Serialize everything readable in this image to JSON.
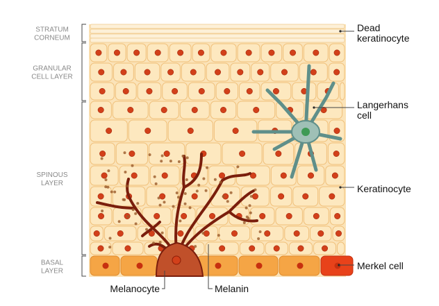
{
  "layers": [
    {
      "lines": [
        "STRATUM",
        "CORNEUM"
      ]
    },
    {
      "lines": [
        "GRANULAR",
        "CELL LAYER"
      ]
    },
    {
      "lines": [
        "SPINOUS",
        "LAYER"
      ]
    },
    {
      "lines": [
        "BASAL",
        "LAYER"
      ]
    }
  ],
  "callouts": [
    {
      "lines": [
        "Dead",
        "keratinocyte"
      ]
    },
    {
      "lines": [
        "Langerhans",
        "cell"
      ]
    },
    {
      "lines": [
        "Keratinocyte"
      ]
    },
    {
      "lines": [
        "Merkel cell"
      ]
    }
  ],
  "bottom_labels": [
    "Melanocyte",
    "Melanin"
  ]
}
